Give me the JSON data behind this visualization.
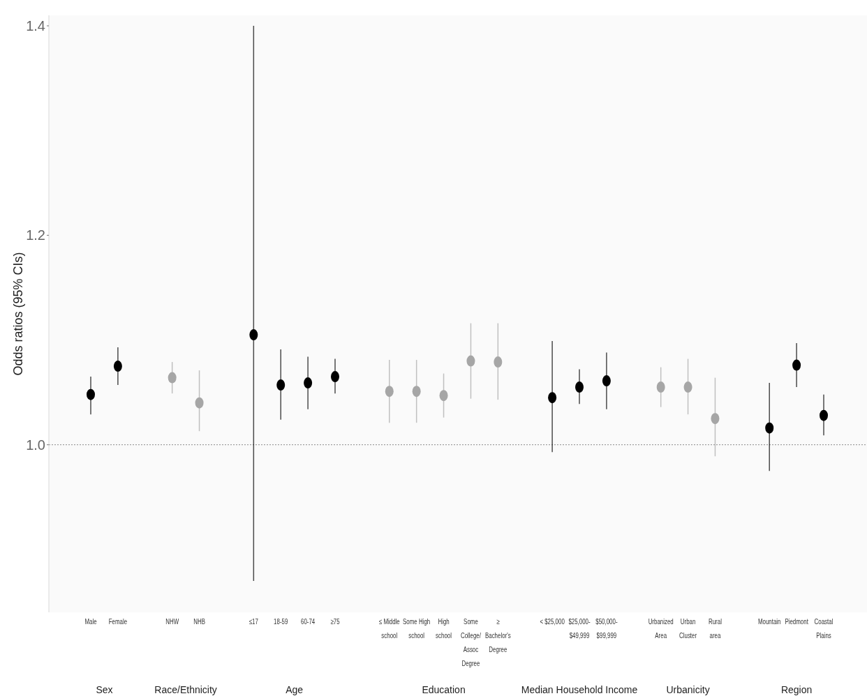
{
  "chart_data": {
    "type": "scatter",
    "ylabel": "Odds ratios (95% CIs)",
    "marker": "circle",
    "categories": [
      "Male",
      "Female",
      null,
      "NHW",
      "NHB",
      null,
      "≤17",
      "18-59",
      "60-74",
      "≥75",
      null,
      "≤ Middle school",
      "Some High school",
      "High school",
      "Some College/Assoc Degree",
      "≥ Bachelor's Degree",
      null,
      "< $25,000",
      "$25,000-$49,999",
      "$50,000-$99,999",
      null,
      "Urbanized Area",
      "Urban Cluster",
      "Rural area",
      null,
      "Mountain",
      "Piedmont",
      "Coastal Plains"
    ],
    "values": [
      1.048,
      1.075,
      null,
      1.064,
      1.04,
      null,
      1.105,
      1.057,
      1.059,
      1.065,
      null,
      1.051,
      1.051,
      1.047,
      1.08,
      1.079,
      null,
      1.045,
      1.055,
      1.061,
      null,
      1.055,
      1.055,
      1.025,
      null,
      1.016,
      1.076,
      1.028
    ],
    "errors": [
      [
        1.029,
        1.065
      ],
      [
        1.057,
        1.093
      ],
      null,
      [
        1.049,
        1.079
      ],
      [
        1.013,
        1.071
      ],
      null,
      [
        0.87,
        1.4
      ],
      [
        1.024,
        1.091
      ],
      [
        1.034,
        1.084
      ],
      [
        1.049,
        1.082
      ],
      null,
      [
        1.021,
        1.081
      ],
      [
        1.021,
        1.081
      ],
      [
        1.026,
        1.068
      ],
      [
        1.044,
        1.116
      ],
      [
        1.043,
        1.116
      ],
      null,
      [
        0.993,
        1.099
      ],
      [
        1.039,
        1.072
      ],
      [
        1.034,
        1.088
      ],
      null,
      [
        1.036,
        1.074
      ],
      [
        1.029,
        1.082
      ],
      [
        0.989,
        1.064
      ],
      null,
      [
        0.975,
        1.059
      ],
      [
        1.055,
        1.097
      ],
      [
        1.009,
        1.048
      ]
    ],
    "colors": [
      "#000000",
      "#000000",
      null,
      "#a6a6a6",
      "#a6a6a6",
      null,
      "#000000",
      "#000000",
      "#000000",
      "#000000",
      null,
      "#a6a6a6",
      "#a6a6a6",
      "#a6a6a6",
      "#a6a6a6",
      "#a6a6a6",
      null,
      "#000000",
      "#000000",
      "#000000",
      null,
      "#a6a6a6",
      "#a6a6a6",
      "#a6a6a6",
      null,
      "#000000",
      "#000000",
      "#000000"
    ],
    "ylim": [
      0.84,
      1.41
    ],
    "yticks": [
      {
        "value": 1.0,
        "label": "1.0"
      },
      {
        "value": 1.2,
        "label": "1.2"
      },
      {
        "value": 1.4,
        "label": "1.4"
      }
    ],
    "ref_lines": [
      {
        "axis": "y",
        "value": 1.0,
        "line_style": "dotted",
        "color": "#888888"
      }
    ],
    "annotations": [
      "Sex",
      "Race/Ethnicity",
      "Age",
      "Education",
      "Median Household Income",
      "Urbanicity",
      "Region"
    ]
  }
}
